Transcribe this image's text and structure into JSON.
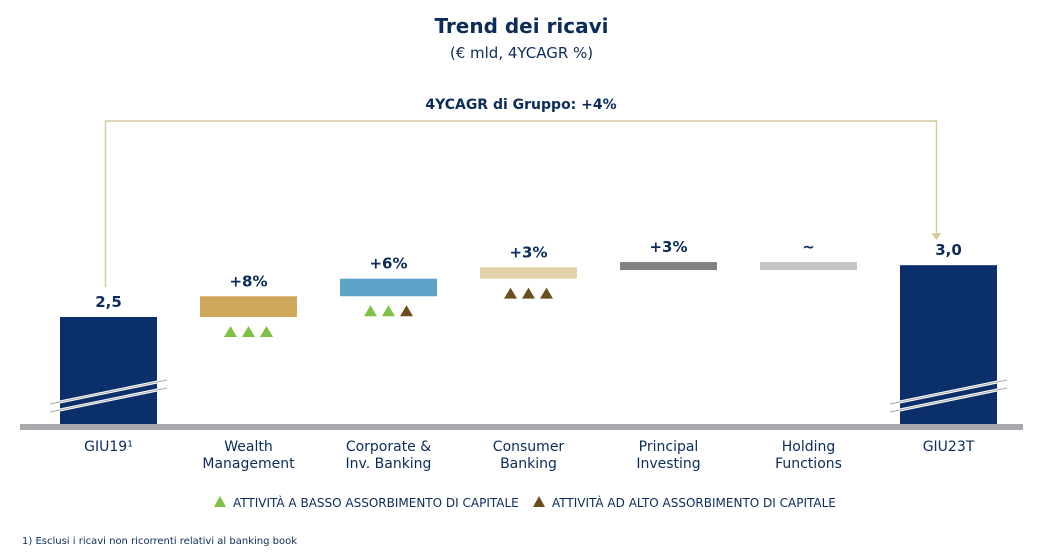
{
  "title": "Trend dei ricavi",
  "subtitle": "(€ mld, 4YCAGR %)",
  "group_cagr": "4YCAGR di Gruppo: +4%",
  "footnote": "1) Esclusi i ricavi non ricorrenti relativi al banking book",
  "legend": [
    {
      "label": "ATTIVITÀ A BASSO ASSORBIMENTO DI CAPITALE",
      "color": "#7dc242"
    },
    {
      "label": "ATTIVITÀ AD ALTO ASSORBIMENTO DI CAPITALE",
      "color": "#6b4e1e"
    }
  ],
  "chart_data": {
    "type": "bar",
    "subtype": "waterfall",
    "title": "Trend dei ricavi",
    "subtitle": "(€ mld, 4YCAGR %)",
    "axis_break": true,
    "bars": [
      {
        "category": "GIU19¹",
        "kind": "total",
        "start": 0,
        "end": 2.5,
        "label": "2,5",
        "color": "#0b2f6b",
        "triangles": []
      },
      {
        "category": "Wealth Management",
        "kind": "delta",
        "start": 2.5,
        "end": 2.7,
        "label": "+8%",
        "color": "#cfa85b",
        "triangles": [
          "low",
          "low",
          "low"
        ]
      },
      {
        "category": "Corporate & Inv. Banking",
        "kind": "delta",
        "start": 2.7,
        "end": 2.87,
        "label": "+6%",
        "color": "#5fa3c8",
        "triangles": [
          "low",
          "low",
          "high"
        ]
      },
      {
        "category": "Consumer Banking",
        "kind": "delta",
        "start": 2.87,
        "end": 2.98,
        "label": "+3%",
        "color": "#e3d3a9",
        "triangles": [
          "high",
          "high",
          "high"
        ]
      },
      {
        "category": "Principal Investing",
        "kind": "delta",
        "start": 2.98,
        "end": 3.03,
        "label": "+3%",
        "color": "#808080",
        "triangles": []
      },
      {
        "category": "Holding Functions",
        "kind": "delta",
        "start": 3.03,
        "end": 3.01,
        "label": "~",
        "color": "#c4c4c4",
        "triangles": []
      },
      {
        "category": "GIU23T",
        "kind": "total",
        "start": 0,
        "end": 3.0,
        "label": "3,0",
        "color": "#0b2f6b",
        "triangles": []
      }
    ]
  }
}
